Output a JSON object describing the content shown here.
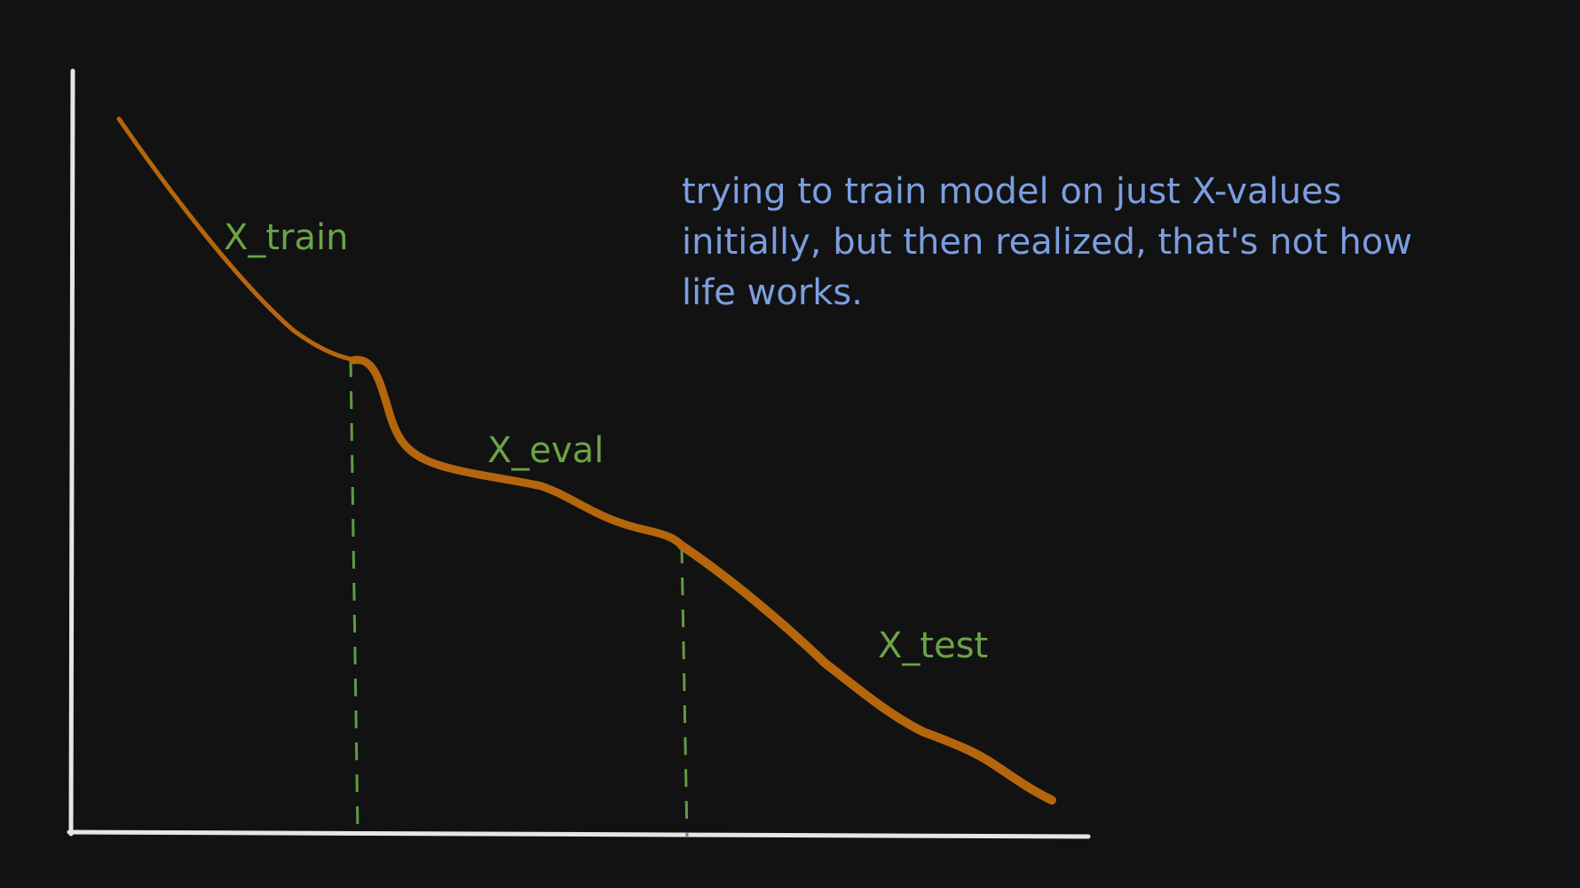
{
  "colors": {
    "background": "#121212",
    "axis": "#e6e6e6",
    "curve": "#b5660c",
    "guide": "#5f9b46",
    "label": "#6ba348",
    "note": "#7b9ee0"
  },
  "diagram": {
    "segments": [
      {
        "id": "train",
        "label": "X_train"
      },
      {
        "id": "eval",
        "label": "X_eval"
      },
      {
        "id": "test",
        "label": "X_test"
      }
    ],
    "note": {
      "lines": [
        "trying to train model on just X-values",
        "initially, but then realized, that's not how",
        "life works."
      ]
    }
  }
}
